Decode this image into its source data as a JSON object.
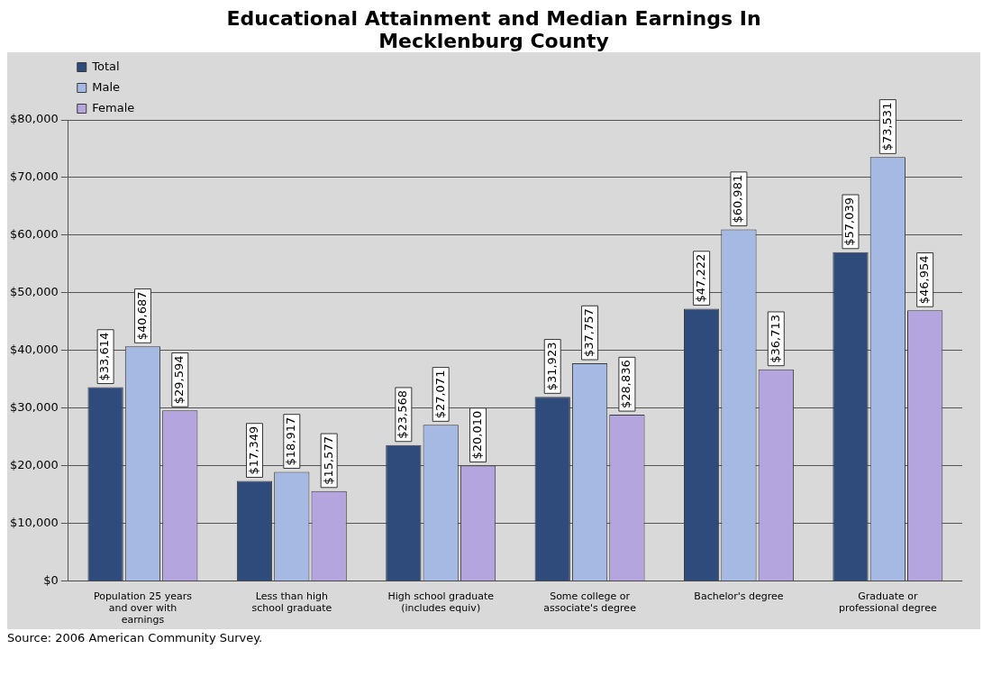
{
  "chart_data": {
    "type": "bar",
    "title": "Educational Attainment and Median Earnings In Mecklenburg County",
    "categories": [
      "Population 25 years and over  with earnings",
      "Less than high school graduate",
      "High school graduate (includes equiv)",
      "Some college or associate's degree",
      "Bachelor's degree",
      "Graduate or professional degree"
    ],
    "series": [
      {
        "name": "Total",
        "color": "#2f4b7c",
        "values": [
          33614,
          17349,
          23568,
          31923,
          47222,
          57039
        ],
        "value_labels": [
          "$33,614",
          "$17,349",
          "$23,568",
          "$31,923",
          "$47,222",
          "$57,039"
        ]
      },
      {
        "name": "Male",
        "color": "#a5b9e3",
        "values": [
          40687,
          18917,
          27071,
          37757,
          60981,
          73531
        ],
        "value_labels": [
          "$40,687",
          "$18,917",
          "$27,071",
          "$37,757",
          "$60,981",
          "$73,531"
        ]
      },
      {
        "name": "Female",
        "color": "#b4a5de",
        "values": [
          29594,
          15577,
          20010,
          28836,
          36713,
          46954
        ],
        "value_labels": [
          "$29,594",
          "$15,577",
          "$20,010",
          "$28,836",
          "$36,713",
          "$46,954"
        ]
      }
    ],
    "ylim": [
      0,
      80000
    ],
    "yticks": [
      {
        "value": 0,
        "label": "$0"
      },
      {
        "value": 10000,
        "label": "$10,000"
      },
      {
        "value": 20000,
        "label": "$20,000"
      },
      {
        "value": 30000,
        "label": "$30,000"
      },
      {
        "value": 40000,
        "label": "$40,000"
      },
      {
        "value": 50000,
        "label": "$50,000"
      },
      {
        "value": 60000,
        "label": "$60,000"
      },
      {
        "value": 70000,
        "label": "$70,000"
      },
      {
        "value": 80000,
        "label": "$80,000"
      }
    ],
    "grid": "y",
    "legend": "top left",
    "annotations": [
      "Source:  2006 American Community Survey."
    ]
  }
}
